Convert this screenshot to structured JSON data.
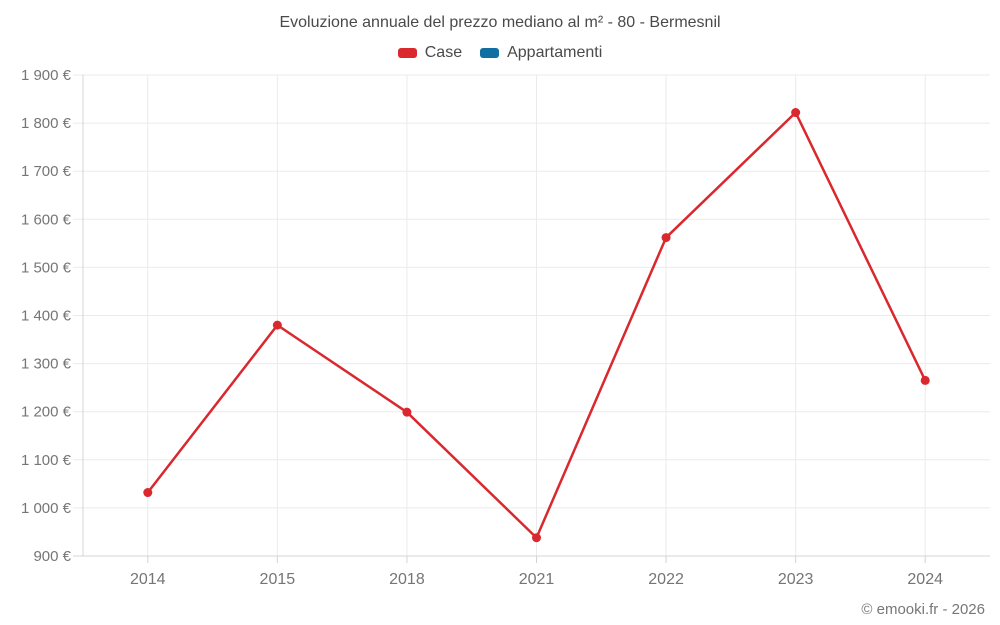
{
  "page": {
    "title": "Evoluzione annuale del prezzo mediano al m² - 80 - Bermesnil",
    "footer": "© emooki.fr - 2026"
  },
  "colors": {
    "case_red": "#d9282e",
    "appartamenti_blue": "#0f6fa3",
    "grid": "#ebebeb",
    "axis": "#d4d4d4",
    "label_gray": "#757575"
  },
  "chart_data": {
    "type": "line",
    "title": "Evoluzione annuale del prezzo mediano al m² - 80 - Bermesnil",
    "xlabel": "",
    "ylabel": "",
    "categories": [
      "2014",
      "2015",
      "2018",
      "2021",
      "2022",
      "2023",
      "2024"
    ],
    "series": [
      {
        "name": "Case",
        "color": "#d9282e",
        "values": [
          1032,
          1380,
          1199,
          938,
          1562,
          1822,
          1265
        ]
      },
      {
        "name": "Appartamenti",
        "color": "#0f6fa3",
        "values": []
      }
    ],
    "ylim": [
      900,
      1900
    ],
    "y_ticks": [
      {
        "value": 900,
        "label": "900 €"
      },
      {
        "value": 1000,
        "label": "1 000 €"
      },
      {
        "value": 1100,
        "label": "1 100 €"
      },
      {
        "value": 1200,
        "label": "1 200 €"
      },
      {
        "value": 1300,
        "label": "1 300 €"
      },
      {
        "value": 1400,
        "label": "1 400 €"
      },
      {
        "value": 1500,
        "label": "1 500 €"
      },
      {
        "value": 1600,
        "label": "1 600 €"
      },
      {
        "value": 1700,
        "label": "1 700 €"
      },
      {
        "value": 1800,
        "label": "1 800 €"
      },
      {
        "value": 1900,
        "label": "1 900 €"
      }
    ],
    "grid": true,
    "legend_position": "top"
  }
}
